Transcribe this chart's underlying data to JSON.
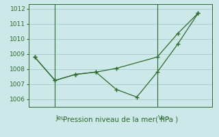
{
  "line1_x": [
    0,
    1,
    2,
    3,
    4,
    6,
    7,
    8
  ],
  "line1_y": [
    1008.8,
    1007.25,
    1007.65,
    1007.8,
    1008.05,
    1008.8,
    1010.35,
    1011.7
  ],
  "line2_x": [
    0,
    1,
    2,
    3,
    4,
    5,
    6,
    7,
    8
  ],
  "line2_y": [
    1008.8,
    1007.25,
    1007.65,
    1007.8,
    1006.65,
    1006.15,
    1007.8,
    1009.65,
    1011.7
  ],
  "line_color": "#2d6a2d",
  "bg_color": "#cce8e8",
  "grid_color": "#aacfcf",
  "xlabel": "Pression niveau de la mer( hPa )",
  "xlabel_color": "#2d6a2d",
  "tick_color": "#2d6a2d",
  "ylim": [
    1005.5,
    1012.3
  ],
  "yticks": [
    1006,
    1007,
    1008,
    1009,
    1010,
    1011,
    1012
  ],
  "xlim": [
    -0.3,
    8.7
  ],
  "jeu_x": 1.05,
  "ven_x": 6.05,
  "day_labels": [
    [
      "Jeu",
      1.05
    ],
    [
      "Ven",
      6.05
    ]
  ]
}
